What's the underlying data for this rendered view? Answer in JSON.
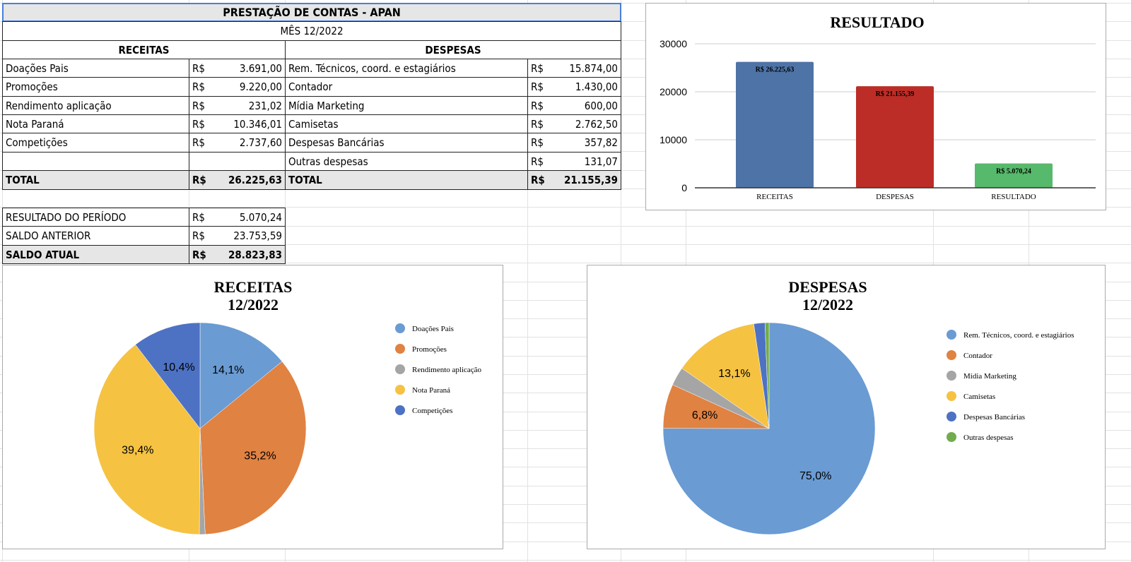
{
  "sheet": {
    "title": "PRESTAÇÃO DE CONTAS - APAN",
    "month": "MÊS 12/2022",
    "receitas_header": "RECEITAS",
    "despesas_header": "DESPESAS",
    "currency": "R$",
    "receitas": [
      {
        "label": "Doações Pais",
        "value": "3.691,00"
      },
      {
        "label": "Promoções",
        "value": "9.220,00"
      },
      {
        "label": "Rendimento aplicação",
        "value": "231,02"
      },
      {
        "label": "Nota Paraná",
        "value": "10.346,01"
      },
      {
        "label": "Competições",
        "value": "2.737,60"
      }
    ],
    "despesas": [
      {
        "label": "Rem. Técnicos, coord. e estagiários",
        "value": "15.874,00"
      },
      {
        "label": "Contador",
        "value": "1.430,00"
      },
      {
        "label": "Mídia Marketing",
        "value": "600,00"
      },
      {
        "label": "Camisetas",
        "value": "2.762,50"
      },
      {
        "label": "Despesas Bancárias",
        "value": "357,82"
      },
      {
        "label": "Outras despesas",
        "value": "131,07"
      }
    ],
    "total_label": "TOTAL",
    "receitas_total": "26.225,63",
    "despesas_total": "21.155,39",
    "summary": [
      {
        "label": "RESULTADO DO PERÍODO",
        "value": "5.070,24"
      },
      {
        "label": "SALDO ANTERIOR",
        "value": "23.753,59"
      },
      {
        "label": "SALDO ATUAL",
        "value": "28.823,83"
      }
    ]
  },
  "chart_data": [
    {
      "type": "bar",
      "title": "RESULTADO",
      "categories": [
        "RECEITAS",
        "DESPESAS",
        "RESULTADO"
      ],
      "values": [
        26225.63,
        21155.39,
        5070.24
      ],
      "data_labels": [
        "R$  26.225,63",
        "R$  21.155,39",
        "R$  5.070,24"
      ],
      "colors": [
        "#4e73a6",
        "#bb2d26",
        "#57b96b"
      ],
      "ylim": [
        0,
        30000
      ],
      "yticks": [
        "0",
        "10000",
        "20000",
        "30000"
      ],
      "grid": true,
      "legend": "none"
    },
    {
      "type": "pie",
      "title": [
        "RECEITAS",
        "12/2022"
      ],
      "labels": [
        "Doações Pais",
        "Promoções",
        "Rendimento aplicação",
        "Nota Paraná",
        "Competições"
      ],
      "values": [
        3691.0,
        9220.0,
        231.02,
        10346.01,
        2737.6
      ],
      "percent_labels": [
        "14,1%",
        "35,2%",
        "",
        "39,4%",
        "10,4%"
      ],
      "colors": [
        "#6a9bd3",
        "#e08242",
        "#a5a5a5",
        "#f5c242",
        "#4d72c4"
      ],
      "legend": "right"
    },
    {
      "type": "pie",
      "title": [
        "DESPESAS",
        "12/2022"
      ],
      "labels": [
        "Rem. Técnicos, coord. e estagiários",
        "Contador",
        "Mídia Marketing",
        "Camisetas",
        "Despesas Bancárias",
        "Outras despesas"
      ],
      "values": [
        15874.0,
        1430.0,
        600.0,
        2762.5,
        357.82,
        131.07
      ],
      "percent_labels": [
        "75,0%",
        "6,8%",
        "",
        "13,1%",
        "",
        ""
      ],
      "colors": [
        "#6a9bd3",
        "#e08242",
        "#a5a5a5",
        "#f5c242",
        "#4d72c4",
        "#72ac4c"
      ],
      "legend": "right"
    }
  ]
}
